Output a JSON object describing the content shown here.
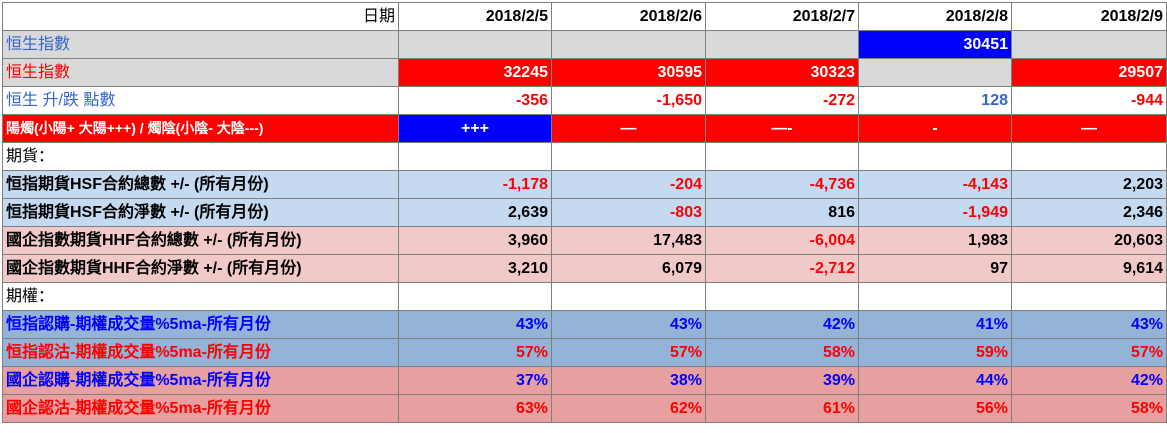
{
  "header": {
    "label": "日期",
    "dates": [
      "2018/2/5",
      "2018/2/6",
      "2018/2/7",
      "2018/2/8",
      "2018/2/9"
    ]
  },
  "hsi_up": {
    "label": "恒生指數",
    "values": [
      "",
      "",
      "",
      "30451",
      ""
    ]
  },
  "hsi_down": {
    "label": "恒生指數",
    "values": [
      "32245",
      "30595",
      "30323",
      "",
      "29507"
    ]
  },
  "hsi_change": {
    "label": "恒生 升/跌 點數",
    "values": [
      "-356",
      "-1,650",
      "-272",
      "128",
      "-944"
    ]
  },
  "candle": {
    "label": "陽燭(小陽+ 大陽+++) /  燭陰(小陰- 大陰---)",
    "values": [
      "+++",
      "—",
      "—-",
      "-",
      "—"
    ]
  },
  "futures_section": {
    "label": "期貨："
  },
  "hsf_total": {
    "label": "恒指期貨HSF合約總數 +/- (所有月份)",
    "values": [
      "-1,178",
      "-204",
      "-4,736",
      "-4,143",
      "2,203"
    ]
  },
  "hsf_net": {
    "label": "恒指期貨HSF合約淨數 +/- (所有月份)",
    "values": [
      "2,639",
      "-803",
      "816",
      "-1,949",
      "2,346"
    ]
  },
  "hhf_total": {
    "label": "國企指數期貨HHF合約總數 +/- (所有月份)",
    "values": [
      "3,960",
      "17,483",
      "-6,004",
      "1,983",
      "20,603"
    ]
  },
  "hhf_net": {
    "label": "國企指數期貨HHF合約淨數 +/- (所有月份)",
    "values": [
      "3,210",
      "6,079",
      "-2,712",
      "97",
      "9,614"
    ]
  },
  "options_section": {
    "label": "期權："
  },
  "hsi_call": {
    "label": "恒指認購-期權成交量%5ma-所有月份",
    "values": [
      "43%",
      "43%",
      "42%",
      "41%",
      "43%"
    ]
  },
  "hsi_put": {
    "label": "恒指認沽-期權成交量%5ma-所有月份",
    "values": [
      "57%",
      "57%",
      "58%",
      "59%",
      "57%"
    ]
  },
  "hhi_call": {
    "label": "國企認購-期權成交量%5ma-所有月份",
    "values": [
      "37%",
      "38%",
      "39%",
      "44%",
      "42%"
    ]
  },
  "hhi_put": {
    "label": "國企認沽-期權成交量%5ma-所有月份",
    "values": [
      "63%",
      "62%",
      "61%",
      "56%",
      "58%"
    ]
  },
  "colors": {
    "up": "#0000ff",
    "down": "#ff0000",
    "light_blue_text": "#3366cc"
  }
}
